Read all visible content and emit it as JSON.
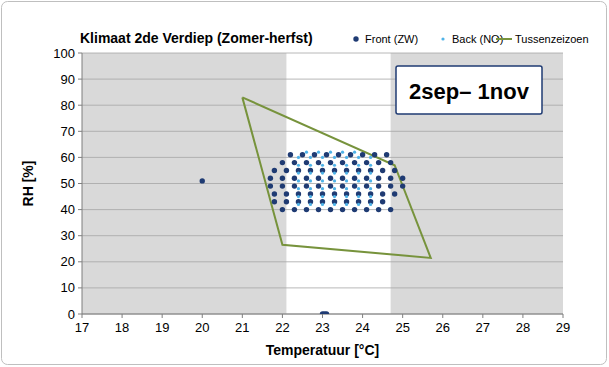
{
  "chart_data": {
    "type": "scatter",
    "title": "Klimaat 2de Verdiep (Zomer-herfst)",
    "x_label": "Temperatuur [°C]",
    "y_label": "RH [%]",
    "annotation": "2sep– 1nov",
    "xlim": [
      17,
      29
    ],
    "ylim": [
      0,
      100
    ],
    "xticks": [
      17,
      18,
      19,
      20,
      21,
      22,
      23,
      24,
      25,
      26,
      27,
      28,
      29
    ],
    "yticks": [
      0,
      10,
      20,
      30,
      40,
      50,
      60,
      70,
      80,
      90,
      100
    ],
    "grid": true,
    "legend": "top-right",
    "shaded_ranges": [
      [
        17,
        22.1
      ],
      [
        24.7,
        29
      ]
    ],
    "series": [
      {
        "name": "Front (ZW)",
        "color": "#1f3b73",
        "marker": "circle",
        "x": [
          20,
          23,
          23.1,
          23.05,
          22.2,
          22.5,
          22.8,
          23.1,
          23.4,
          23.7,
          24.0,
          24.3,
          24.6,
          22.0,
          22.3,
          22.6,
          22.9,
          23.2,
          23.5,
          23.8,
          24.1,
          24.4,
          24.7,
          21.8,
          22.1,
          22.4,
          22.7,
          23.0,
          23.3,
          23.6,
          23.9,
          24.2,
          24.5,
          24.8,
          21.7,
          22.0,
          22.3,
          22.6,
          22.9,
          23.2,
          23.5,
          23.8,
          24.1,
          24.4,
          24.7,
          25.0,
          21.7,
          22.0,
          22.3,
          22.6,
          22.9,
          23.2,
          23.5,
          23.8,
          24.1,
          24.4,
          24.7,
          25.0,
          21.8,
          22.1,
          22.4,
          22.7,
          23.0,
          23.3,
          23.6,
          23.9,
          24.2,
          24.5,
          24.8,
          21.8,
          22.1,
          22.4,
          22.7,
          23.0,
          23.3,
          23.6,
          23.9,
          24.2,
          24.5,
          22.0,
          22.3,
          22.6,
          22.9,
          23.2,
          23.5,
          23.8,
          24.1,
          24.4,
          24.7
        ],
        "values": [
          51,
          0,
          0,
          0,
          61,
          61,
          61,
          61,
          61,
          61,
          61,
          61,
          61,
          58,
          58,
          58,
          58,
          58,
          58,
          58,
          58,
          58,
          58,
          55,
          55,
          55,
          55,
          55,
          55,
          55,
          55,
          55,
          55,
          55,
          52,
          52,
          52,
          52,
          52,
          52,
          52,
          52,
          52,
          52,
          52,
          52,
          49,
          49,
          49,
          49,
          49,
          49,
          49,
          49,
          49,
          49,
          49,
          49,
          46,
          46,
          46,
          46,
          46,
          46,
          46,
          46,
          46,
          46,
          46,
          43,
          43,
          43,
          43,
          43,
          43,
          43,
          43,
          43,
          43,
          40,
          40,
          40,
          40,
          40,
          40,
          40,
          40,
          40,
          40
        ]
      },
      {
        "name": "Back (NO)",
        "color": "#4fb3e8",
        "marker": "circle",
        "x": [
          22.6,
          22.9,
          23.2,
          23.5,
          23.8,
          22.4,
          22.7,
          23.0,
          23.3,
          23.6,
          23.9,
          24.2,
          22.4,
          22.7,
          23.0,
          23.3,
          23.6,
          23.9,
          24.2,
          22.4,
          22.7,
          23.0,
          23.3,
          23.6,
          23.9,
          24.2,
          22.4,
          22.7,
          23.0,
          23.3,
          23.6,
          23.9,
          24.2,
          22.4,
          22.7,
          23.0,
          23.3,
          23.6,
          23.9,
          24.2,
          22.4,
          22.7,
          23.0,
          23.3,
          23.6,
          23.9,
          24.2,
          22.4,
          22.7,
          23.0,
          23.3,
          23.6,
          23.9,
          24.2
        ],
        "values": [
          62,
          62,
          62,
          62,
          62,
          60,
          60,
          60,
          60,
          60,
          60,
          60,
          57,
          57,
          57,
          57,
          57,
          57,
          57,
          54,
          54,
          54,
          54,
          54,
          54,
          54,
          51,
          51,
          51,
          51,
          51,
          51,
          51,
          48,
          48,
          48,
          48,
          48,
          48,
          48,
          45,
          45,
          45,
          45,
          45,
          45,
          45,
          42,
          42,
          42,
          42,
          42,
          42,
          42
        ]
      },
      {
        "name": "Tussenzeizoen",
        "color": "#77933c",
        "type": "line",
        "line_style": "solid",
        "x": [
          21,
          24.8,
          25.7,
          22,
          21
        ],
        "values": [
          83,
          57,
          21.5,
          26.5,
          83
        ]
      }
    ]
  }
}
